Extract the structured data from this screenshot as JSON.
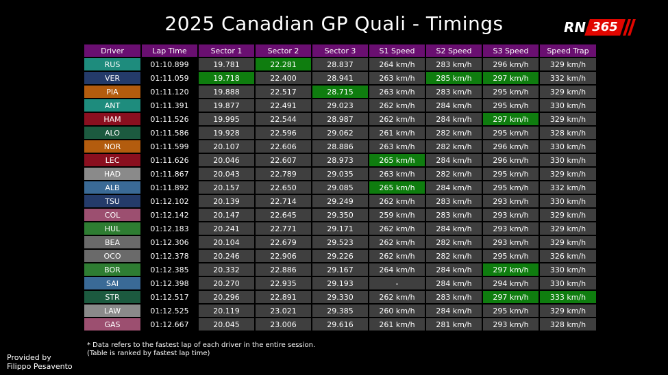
{
  "title": "2025 Canadian GP Quali - Timings",
  "logo": {
    "text_rn": "RN",
    "text_num": "365"
  },
  "colors": {
    "header": "#6a0f71",
    "fastest": "#0f7d0f",
    "cell": "#3f3f3f"
  },
  "chart_data": {
    "type": "table",
    "columns": [
      "Driver",
      "Lap Time",
      "Sector 1",
      "Sector 2",
      "Sector 3",
      "S1 Speed",
      "S2 Speed",
      "S3 Speed",
      "Speed Trap"
    ],
    "rows": [
      {
        "driver": "RUS",
        "color": "#1e8c7d",
        "cells": [
          "01:10.899",
          "19.781",
          "22.281",
          "28.837",
          "264 km/h",
          "283 km/h",
          "296 km/h",
          "329 km/h"
        ],
        "highlight": [
          false,
          false,
          true,
          false,
          false,
          false,
          false,
          false
        ]
      },
      {
        "driver": "VER",
        "color": "#243b6a",
        "cells": [
          "01:11.059",
          "19.718",
          "22.400",
          "28.941",
          "263 km/h",
          "285 km/h",
          "297 km/h",
          "332 km/h"
        ],
        "highlight": [
          false,
          true,
          false,
          false,
          false,
          true,
          true,
          false
        ]
      },
      {
        "driver": "PIA",
        "color": "#b35c0e",
        "cells": [
          "01:11.120",
          "19.888",
          "22.517",
          "28.715",
          "263 km/h",
          "283 km/h",
          "295 km/h",
          "329 km/h"
        ],
        "highlight": [
          false,
          false,
          false,
          true,
          false,
          false,
          false,
          false
        ]
      },
      {
        "driver": "ANT",
        "color": "#1e8c7d",
        "cells": [
          "01:11.391",
          "19.877",
          "22.491",
          "29.023",
          "262 km/h",
          "284 km/h",
          "295 km/h",
          "330 km/h"
        ],
        "highlight": [
          false,
          false,
          false,
          false,
          false,
          false,
          false,
          false
        ]
      },
      {
        "driver": "HAM",
        "color": "#8a0f1f",
        "cells": [
          "01:11.526",
          "19.995",
          "22.544",
          "28.987",
          "262 km/h",
          "284 km/h",
          "297 km/h",
          "329 km/h"
        ],
        "highlight": [
          false,
          false,
          false,
          false,
          false,
          false,
          true,
          false
        ]
      },
      {
        "driver": "ALO",
        "color": "#1c5a3f",
        "cells": [
          "01:11.586",
          "19.928",
          "22.596",
          "29.062",
          "261 km/h",
          "282 km/h",
          "295 km/h",
          "328 km/h"
        ],
        "highlight": [
          false,
          false,
          false,
          false,
          false,
          false,
          false,
          false
        ]
      },
      {
        "driver": "NOR",
        "color": "#b35c0e",
        "cells": [
          "01:11.599",
          "20.107",
          "22.606",
          "28.886",
          "263 km/h",
          "282 km/h",
          "296 km/h",
          "330 km/h"
        ],
        "highlight": [
          false,
          false,
          false,
          false,
          false,
          false,
          false,
          false
        ]
      },
      {
        "driver": "LEC",
        "color": "#8a0f1f",
        "cells": [
          "01:11.626",
          "20.046",
          "22.607",
          "28.973",
          "265 km/h",
          "284 km/h",
          "296 km/h",
          "330 km/h"
        ],
        "highlight": [
          false,
          false,
          false,
          false,
          true,
          false,
          false,
          false
        ]
      },
      {
        "driver": "HAD",
        "color": "#8a8a8a",
        "cells": [
          "01:11.867",
          "20.043",
          "22.789",
          "29.035",
          "263 km/h",
          "282 km/h",
          "295 km/h",
          "329 km/h"
        ],
        "highlight": [
          false,
          false,
          false,
          false,
          false,
          false,
          false,
          false
        ]
      },
      {
        "driver": "ALB",
        "color": "#3a6a96",
        "cells": [
          "01:11.892",
          "20.157",
          "22.650",
          "29.085",
          "265 km/h",
          "284 km/h",
          "295 km/h",
          "332 km/h"
        ],
        "highlight": [
          false,
          false,
          false,
          false,
          true,
          false,
          false,
          false
        ]
      },
      {
        "driver": "TSU",
        "color": "#243b6a",
        "cells": [
          "01:12.102",
          "20.139",
          "22.714",
          "29.249",
          "262 km/h",
          "283 km/h",
          "293 km/h",
          "330 km/h"
        ],
        "highlight": [
          false,
          false,
          false,
          false,
          false,
          false,
          false,
          false
        ]
      },
      {
        "driver": "COL",
        "color": "#9c4f70",
        "cells": [
          "01:12.142",
          "20.147",
          "22.645",
          "29.350",
          "259 km/h",
          "283 km/h",
          "293 km/h",
          "329 km/h"
        ],
        "highlight": [
          false,
          false,
          false,
          false,
          false,
          false,
          false,
          false
        ]
      },
      {
        "driver": "HUL",
        "color": "#2e7d32",
        "cells": [
          "01:12.183",
          "20.241",
          "22.771",
          "29.171",
          "262 km/h",
          "284 km/h",
          "293 km/h",
          "329 km/h"
        ],
        "highlight": [
          false,
          false,
          false,
          false,
          false,
          false,
          false,
          false
        ]
      },
      {
        "driver": "BEA",
        "color": "#6a6a6a",
        "cells": [
          "01:12.306",
          "20.104",
          "22.679",
          "29.523",
          "262 km/h",
          "282 km/h",
          "293 km/h",
          "329 km/h"
        ],
        "highlight": [
          false,
          false,
          false,
          false,
          false,
          false,
          false,
          false
        ]
      },
      {
        "driver": "OCO",
        "color": "#6a6a6a",
        "cells": [
          "01:12.378",
          "20.246",
          "22.906",
          "29.226",
          "262 km/h",
          "282 km/h",
          "295 km/h",
          "326 km/h"
        ],
        "highlight": [
          false,
          false,
          false,
          false,
          false,
          false,
          false,
          false
        ]
      },
      {
        "driver": "BOR",
        "color": "#2e7d32",
        "cells": [
          "01:12.385",
          "20.332",
          "22.886",
          "29.167",
          "264 km/h",
          "284 km/h",
          "297 km/h",
          "330 km/h"
        ],
        "highlight": [
          false,
          false,
          false,
          false,
          false,
          false,
          true,
          false
        ]
      },
      {
        "driver": "SAI",
        "color": "#3a6a96",
        "cells": [
          "01:12.398",
          "20.270",
          "22.935",
          "29.193",
          "-",
          "284 km/h",
          "294 km/h",
          "330 km/h"
        ],
        "highlight": [
          false,
          false,
          false,
          false,
          false,
          false,
          false,
          false
        ]
      },
      {
        "driver": "STR",
        "color": "#1c5a3f",
        "cells": [
          "01:12.517",
          "20.296",
          "22.891",
          "29.330",
          "262 km/h",
          "283 km/h",
          "297 km/h",
          "333 km/h"
        ],
        "highlight": [
          false,
          false,
          false,
          false,
          false,
          false,
          true,
          true
        ]
      },
      {
        "driver": "LAW",
        "color": "#8a8a8a",
        "cells": [
          "01:12.525",
          "20.119",
          "23.021",
          "29.385",
          "260 km/h",
          "284 km/h",
          "295 km/h",
          "329 km/h"
        ],
        "highlight": [
          false,
          false,
          false,
          false,
          false,
          false,
          false,
          false
        ]
      },
      {
        "driver": "GAS",
        "color": "#9c4f70",
        "cells": [
          "01:12.667",
          "20.045",
          "23.006",
          "29.616",
          "261 km/h",
          "281 km/h",
          "293 km/h",
          "328 km/h"
        ],
        "highlight": [
          false,
          false,
          false,
          false,
          false,
          false,
          false,
          false
        ]
      }
    ]
  },
  "footnote": {
    "line1": "* Data refers to the fastest lap of each driver in the entire session.",
    "line2": "(Table is ranked by fastest lap time)"
  },
  "credit": {
    "line1": "Provided by",
    "line2": "Filippo Pesavento"
  }
}
